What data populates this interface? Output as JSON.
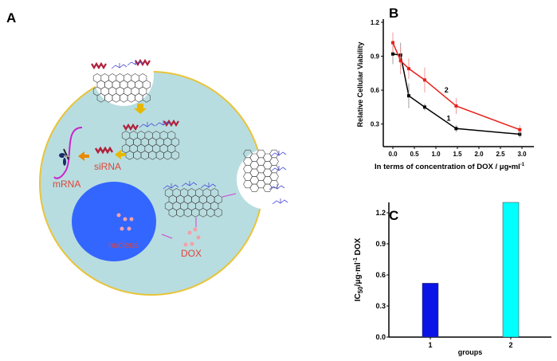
{
  "panels": {
    "a": "A",
    "b": "B",
    "c": "C"
  },
  "diagram": {
    "labels": {
      "sirna": "siRNA",
      "mrna": "mRNA",
      "nucleus": "nucleus",
      "dox": "DOX"
    },
    "colors": {
      "cytoplasm": "#b8dde0",
      "membrane": "#e8c43a",
      "nucleus": "#3366ff",
      "label": "#e0443a",
      "arrow_block": "#e8b800",
      "arrow_thin": "#d040d0",
      "sirna": "#b0203a",
      "graphene": "#444444",
      "peg": "#4a4ad8",
      "dox": "#f4a0a8"
    }
  },
  "chart_data": [
    {
      "type": "line",
      "panel": "B",
      "xlabel": "In terms of concentration of DOX / μg•ml",
      "xlabel_sup": "-1",
      "ylabel": "Relative Cellular Viability",
      "xlim": [
        -0.2,
        3.2
      ],
      "ylim": [
        0.1,
        1.2
      ],
      "xticks": [
        "0.0",
        "0.5",
        "1.0",
        "1.5",
        "2.0",
        "2.5",
        "3.0"
      ],
      "yticks": [
        "0.3",
        "0.6",
        "0.9",
        "1.2"
      ],
      "grid": false,
      "series": [
        {
          "name": "1",
          "color": "#000000",
          "x": [
            0,
            0.18,
            0.37,
            0.74,
            1.47,
            2.95
          ],
          "y": [
            0.92,
            0.91,
            0.55,
            0.45,
            0.26,
            0.21
          ],
          "err": [
            0.09,
            0.11,
            0.11,
            0.03,
            0.03,
            0.03
          ]
        },
        {
          "name": "2",
          "color": "#e8201a",
          "x": [
            0,
            0.18,
            0.37,
            0.74,
            1.47,
            2.95
          ],
          "y": [
            1.02,
            0.86,
            0.79,
            0.69,
            0.46,
            0.25
          ],
          "err": [
            0.09,
            0.12,
            0.09,
            0.11,
            0.07,
            0.04
          ]
        }
      ]
    },
    {
      "type": "bar",
      "panel": "C",
      "categories": [
        "1",
        "2"
      ],
      "values": [
        0.52,
        1.3
      ],
      "colors": [
        "#0a14e6",
        "#00ffff"
      ],
      "xlabel": "groups",
      "ylabel": "IC",
      "ylabel_sub": "50",
      "ylabel_rest": "/μg·ml",
      "ylabel_sup": "-1",
      "ylabel_tail": "DOX",
      "ylim": [
        0,
        1.36
      ],
      "yticks": [
        "0.0",
        "0.3",
        "0.6",
        "0.9",
        "1.2"
      ]
    }
  ]
}
